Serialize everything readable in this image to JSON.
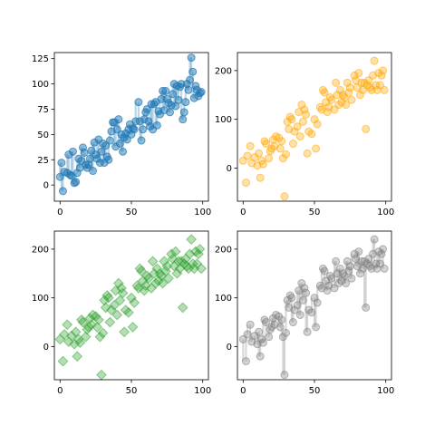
{
  "figure": {
    "background": "#ffffff"
  },
  "chart_data": [
    {
      "type": "scatter",
      "title": "",
      "xlabel": "",
      "ylabel": "",
      "xlim": [
        -4,
        104
      ],
      "ylim": [
        -16,
        131
      ],
      "xticks": [
        0,
        50,
        100
      ],
      "yticks": [
        0,
        25,
        50,
        75,
        100,
        125
      ],
      "grid": false,
      "legend": "none",
      "marker": "circle",
      "color": "#1f77b4",
      "alpha": 0.5,
      "stems": true,
      "series": [
        {
          "x": [
            0,
            1,
            2,
            3,
            5,
            6,
            7,
            8,
            9,
            10,
            11,
            12,
            13,
            14,
            15,
            16,
            17,
            18,
            19,
            20,
            21,
            22,
            23,
            24,
            25,
            26,
            27,
            28,
            29,
            30,
            31,
            32,
            33,
            34,
            35,
            36,
            37,
            38,
            39,
            40,
            41,
            42,
            43,
            44,
            45,
            46,
            47,
            48,
            49,
            50,
            51,
            52,
            53,
            55,
            56,
            57,
            58,
            59,
            60,
            61,
            62,
            63,
            64,
            65,
            66,
            67,
            68,
            69,
            70,
            71,
            72,
            73,
            74,
            75,
            76,
            77,
            78,
            79,
            80,
            81,
            82,
            83,
            84,
            85,
            86,
            87,
            88,
            89,
            90,
            91,
            92,
            93,
            94,
            95,
            96,
            97,
            98,
            99
          ],
          "y": [
            8,
            22,
            -6,
            13,
            12,
            30,
            10,
            9,
            33,
            2,
            3,
            12,
            26,
            17,
            24,
            37,
            32,
            20,
            17,
            20,
            26,
            34,
            14,
            42,
            30,
            26,
            45,
            22,
            33,
            41,
            22,
            39,
            28,
            25,
            44,
            53,
            62,
            62,
            38,
            55,
            65,
            41,
            50,
            33,
            47,
            51,
            45,
            55,
            60,
            50,
            56,
            55,
            63,
            82,
            63,
            44,
            55,
            65,
            72,
            75,
            63,
            58,
            80,
            55,
            80,
            82,
            59,
            73,
            70,
            85,
            93,
            74,
            93,
            85,
            81,
            72,
            79,
            90,
            100,
            78,
            98,
            84,
            97,
            100,
            65,
            72,
            82,
            100,
            94,
            104,
            126,
            112,
            86,
            98,
            94,
            88,
            91,
            92
          ]
        }
      ]
    },
    {
      "type": "scatter",
      "title": "",
      "xlabel": "",
      "ylabel": "",
      "xlim": [
        -4,
        104
      ],
      "ylim": [
        -68,
        237
      ],
      "xticks": [
        0,
        50,
        100
      ],
      "yticks": [
        0,
        100,
        200
      ],
      "grid": false,
      "legend": "none",
      "marker": "circle",
      "color": "#ffa500",
      "alpha": 0.35,
      "stems": false,
      "series": [
        {
          "x": [
            0,
            2,
            3,
            5,
            6,
            8,
            10,
            11,
            12,
            13,
            14,
            15,
            16,
            18,
            19,
            20,
            21,
            22,
            23,
            25,
            26,
            27,
            28,
            29,
            30,
            31,
            32,
            33,
            34,
            35,
            36,
            38,
            39,
            40,
            41,
            42,
            43,
            44,
            45,
            46,
            48,
            50,
            51,
            52,
            54,
            55,
            56,
            57,
            58,
            59,
            60,
            61,
            62,
            64,
            65,
            66,
            67,
            68,
            69,
            70,
            71,
            72,
            73,
            74,
            75,
            76,
            78,
            79,
            80,
            81,
            82,
            83,
            84,
            85,
            86,
            87,
            88,
            89,
            90,
            91,
            92,
            93,
            94,
            95,
            96,
            97,
            98,
            99
          ],
          "y": [
            15,
            -30,
            25,
            45,
            10,
            22,
            5,
            30,
            -20,
            15,
            8,
            55,
            50,
            20,
            35,
            40,
            58,
            45,
            65,
            62,
            40,
            55,
            20,
            -58,
            28,
            95,
            80,
            105,
            100,
            50,
            75,
            85,
            115,
            65,
            130,
            95,
            120,
            110,
            30,
            75,
            70,
            100,
            40,
            90,
            125,
            120,
            160,
            155,
            135,
            115,
            125,
            145,
            140,
            120,
            175,
            150,
            130,
            160,
            135,
            150,
            145,
            130,
            175,
            155,
            165,
            140,
            190,
            180,
            165,
            195,
            150,
            175,
            160,
            175,
            80,
            170,
            180,
            165,
            160,
            190,
            220,
            170,
            160,
            195,
            170,
            190,
            200,
            160
          ]
        }
      ]
    },
    {
      "type": "scatter",
      "title": "",
      "xlabel": "",
      "ylabel": "",
      "xlim": [
        -4,
        104
      ],
      "ylim": [
        -68,
        237
      ],
      "xticks": [
        0,
        50,
        100
      ],
      "yticks": [
        0,
        100,
        200
      ],
      "grid": false,
      "legend": "none",
      "marker": "diamond",
      "color": "#2ca02c",
      "alpha": 0.35,
      "stems": false,
      "series": [
        {
          "x": [
            0,
            2,
            3,
            5,
            6,
            8,
            10,
            11,
            12,
            13,
            14,
            15,
            16,
            18,
            19,
            20,
            21,
            22,
            23,
            25,
            26,
            27,
            28,
            29,
            30,
            31,
            32,
            33,
            34,
            35,
            36,
            38,
            39,
            40,
            41,
            42,
            43,
            44,
            45,
            46,
            48,
            50,
            51,
            52,
            54,
            55,
            56,
            57,
            58,
            59,
            60,
            61,
            62,
            64,
            65,
            66,
            67,
            68,
            69,
            70,
            71,
            72,
            73,
            74,
            75,
            76,
            78,
            79,
            80,
            81,
            82,
            83,
            84,
            85,
            86,
            87,
            88,
            89,
            90,
            91,
            92,
            93,
            94,
            95,
            96,
            97,
            98,
            99
          ],
          "y": [
            15,
            -30,
            25,
            45,
            10,
            22,
            5,
            30,
            -20,
            15,
            8,
            55,
            50,
            20,
            35,
            40,
            58,
            45,
            65,
            62,
            40,
            55,
            20,
            -58,
            28,
            95,
            80,
            105,
            100,
            50,
            75,
            85,
            115,
            65,
            130,
            95,
            120,
            110,
            30,
            75,
            70,
            100,
            40,
            90,
            125,
            120,
            160,
            155,
            135,
            115,
            125,
            145,
            140,
            120,
            175,
            150,
            130,
            160,
            135,
            150,
            145,
            130,
            175,
            155,
            165,
            140,
            190,
            180,
            165,
            195,
            150,
            175,
            160,
            175,
            80,
            170,
            180,
            165,
            160,
            190,
            220,
            170,
            160,
            195,
            170,
            190,
            200,
            160
          ]
        }
      ]
    },
    {
      "type": "scatter",
      "title": "",
      "xlabel": "",
      "ylabel": "",
      "xlim": [
        -4,
        104
      ],
      "ylim": [
        -68,
        237
      ],
      "xticks": [
        0,
        50,
        100
      ],
      "yticks": [
        0,
        100,
        200
      ],
      "grid": false,
      "legend": "none",
      "marker": "circle",
      "color": "#808080",
      "alpha": 0.35,
      "stems": true,
      "series": [
        {
          "x": [
            0,
            2,
            3,
            5,
            6,
            8,
            10,
            11,
            12,
            13,
            14,
            15,
            16,
            18,
            19,
            20,
            21,
            22,
            23,
            25,
            26,
            27,
            28,
            29,
            30,
            31,
            32,
            33,
            34,
            35,
            36,
            38,
            39,
            40,
            41,
            42,
            43,
            44,
            45,
            46,
            48,
            50,
            51,
            52,
            54,
            55,
            56,
            57,
            58,
            59,
            60,
            61,
            62,
            64,
            65,
            66,
            67,
            68,
            69,
            70,
            71,
            72,
            73,
            74,
            75,
            76,
            78,
            79,
            80,
            81,
            82,
            83,
            84,
            85,
            86,
            87,
            88,
            89,
            90,
            91,
            92,
            93,
            94,
            95,
            96,
            97,
            98,
            99
          ],
          "y": [
            15,
            -30,
            25,
            45,
            10,
            22,
            5,
            30,
            -20,
            15,
            8,
            55,
            50,
            20,
            35,
            40,
            58,
            45,
            65,
            62,
            40,
            55,
            20,
            -58,
            28,
            95,
            80,
            105,
            100,
            50,
            75,
            85,
            115,
            65,
            130,
            95,
            120,
            110,
            30,
            75,
            70,
            100,
            40,
            90,
            125,
            120,
            160,
            155,
            135,
            115,
            125,
            145,
            140,
            120,
            175,
            150,
            130,
            160,
            135,
            150,
            145,
            130,
            175,
            155,
            165,
            140,
            190,
            180,
            165,
            195,
            150,
            175,
            160,
            175,
            80,
            170,
            180,
            165,
            160,
            190,
            220,
            170,
            160,
            195,
            170,
            190,
            200,
            160
          ]
        }
      ]
    }
  ]
}
